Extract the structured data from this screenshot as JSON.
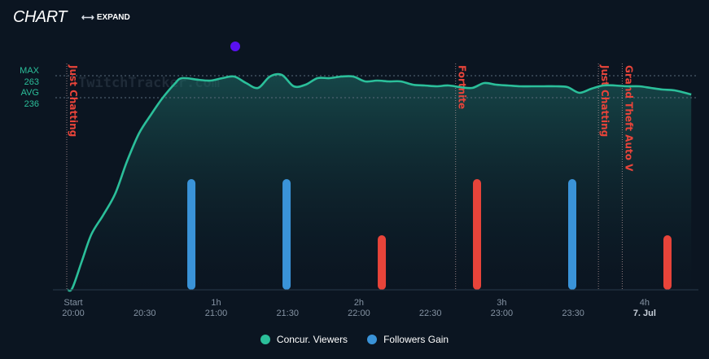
{
  "header": {
    "title": "CHART",
    "expand_label": "EXPAND",
    "expand_icon": "expand-arrows-icon"
  },
  "legend": [
    {
      "name": "Concur. Viewers",
      "color": "#2bbf9a"
    },
    {
      "name": "Followers Gain",
      "color": "#3a93d8"
    }
  ],
  "colors": {
    "viewers": "#2bbf9a",
    "followers_gain": "#3a93d8",
    "followers_loss": "#e8443a",
    "game_marker": "#e8443a",
    "background": "#0b1521"
  },
  "chart_data": {
    "type": "line",
    "watermark": "TwitchTracker.com",
    "stats": {
      "max_label": "MAX",
      "max_value": 263,
      "avg_label": "AVG",
      "avg_value": 236
    },
    "ylim": [
      0,
      275
    ],
    "x_range_minutes": [
      0,
      265
    ],
    "x_ticks": [
      {
        "minute": 0,
        "top": "Start",
        "bottom": "20:00"
      },
      {
        "minute": 30,
        "top": "",
        "bottom": "20:30"
      },
      {
        "minute": 60,
        "top": "1h",
        "bottom": "21:00"
      },
      {
        "minute": 90,
        "top": "",
        "bottom": "21:30"
      },
      {
        "minute": 120,
        "top": "2h",
        "bottom": "22:00"
      },
      {
        "minute": 150,
        "top": "",
        "bottom": "22:30"
      },
      {
        "minute": 180,
        "top": "3h",
        "bottom": "23:00"
      },
      {
        "minute": 210,
        "top": "",
        "bottom": "23:30"
      },
      {
        "minute": 240,
        "top": "4h",
        "bottom": "7. Jul"
      }
    ],
    "series": [
      {
        "name": "Concur. Viewers",
        "x": [
          0,
          2,
          6,
          10,
          15,
          20,
          25,
          30,
          35,
          40,
          45,
          48,
          55,
          60,
          65,
          70,
          75,
          80,
          85,
          90,
          95,
          100,
          105,
          110,
          115,
          120,
          125,
          130,
          135,
          140,
          145,
          150,
          155,
          160,
          165,
          170,
          175,
          180,
          185,
          190,
          195,
          200,
          205,
          210,
          215,
          220,
          225,
          230,
          235,
          240,
          245,
          250,
          255,
          262
        ],
        "y": [
          0,
          2,
          35,
          68,
          92,
          118,
          158,
          192,
          215,
          236,
          253,
          260,
          258,
          257,
          260,
          262,
          254,
          248,
          262,
          264,
          250,
          252,
          260,
          260,
          262,
          262,
          256,
          257,
          256,
          256,
          252,
          251,
          250,
          251,
          249,
          248,
          254,
          252,
          251,
          250,
          250,
          250,
          250,
          249,
          242,
          247,
          251,
          251,
          250,
          250,
          248,
          246,
          245,
          240
        ]
      },
      {
        "name": "Followers Gain",
        "bars": [
          {
            "minute": 52,
            "value": 1
          },
          {
            "minute": 92,
            "value": 1
          },
          {
            "minute": 132,
            "value": -1
          },
          {
            "minute": 172,
            "value": -1
          },
          {
            "minute": 212,
            "value": 1
          },
          {
            "minute": 252,
            "value": -1
          }
        ],
        "bar_ylim": [
          0,
          1
        ]
      }
    ],
    "game_markers": [
      {
        "minute": 0,
        "label": "Just Chatting"
      },
      {
        "minute": 163,
        "label": "Fortnite"
      },
      {
        "minute": 223,
        "label": "Just Chatting"
      },
      {
        "minute": 233,
        "label": "Grand Theft Auto V"
      }
    ],
    "grid": false,
    "legend_position": "bottom-center"
  }
}
